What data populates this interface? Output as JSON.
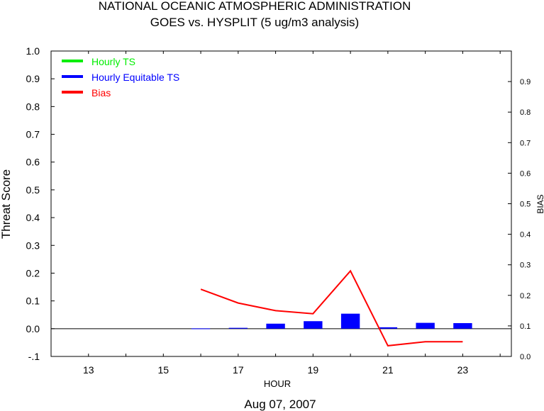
{
  "chart_data": {
    "type": "bar",
    "title": "NATIONAL OCEANIC ATMOSPHERIC ADMINISTRATION",
    "subtitle": "GOES vs. HYSPLIT  (5 ug/m3 analysis)",
    "xlabel": "HOUR",
    "ylabel": "Threat Score",
    "y2label": "BIAS",
    "date_label": "Aug 07, 2007",
    "xlim": [
      12,
      24.3
    ],
    "ylim": [
      -0.1,
      1.0
    ],
    "y2lim": [
      0.0,
      1.0
    ],
    "x_ticks": [
      13,
      15,
      17,
      19,
      21,
      23
    ],
    "y_ticks": [
      "-.1",
      "0.0",
      "0.1",
      "0.2",
      "0.3",
      "0.4",
      "0.5",
      "0.6",
      "0.7",
      "0.8",
      "0.9",
      "1.0"
    ],
    "y2_ticks": [
      "0.0",
      "0.1",
      "0.2",
      "0.3",
      "0.4",
      "0.5",
      "0.6",
      "0.7",
      "0.8",
      "0.9"
    ],
    "legend_position": "top-left",
    "series": [
      {
        "name": "Hourly TS",
        "type": "bar",
        "color": "#00ee00",
        "x": [],
        "values": []
      },
      {
        "name": "Hourly Equitable TS",
        "type": "bar",
        "color": "#0000ff",
        "x": [
          16,
          17,
          18,
          19,
          20,
          21,
          22,
          23
        ],
        "values": [
          0.001,
          0.003,
          0.018,
          0.027,
          0.054,
          0.005,
          0.021,
          0.02
        ]
      },
      {
        "name": "Bias",
        "type": "line",
        "color": "#ff0000",
        "axis": "right",
        "x": [
          16,
          17,
          18,
          19,
          20,
          21,
          22,
          23
        ],
        "values": [
          0.22,
          0.175,
          0.15,
          0.14,
          0.28,
          0.035,
          0.048,
          0.048
        ]
      }
    ]
  }
}
